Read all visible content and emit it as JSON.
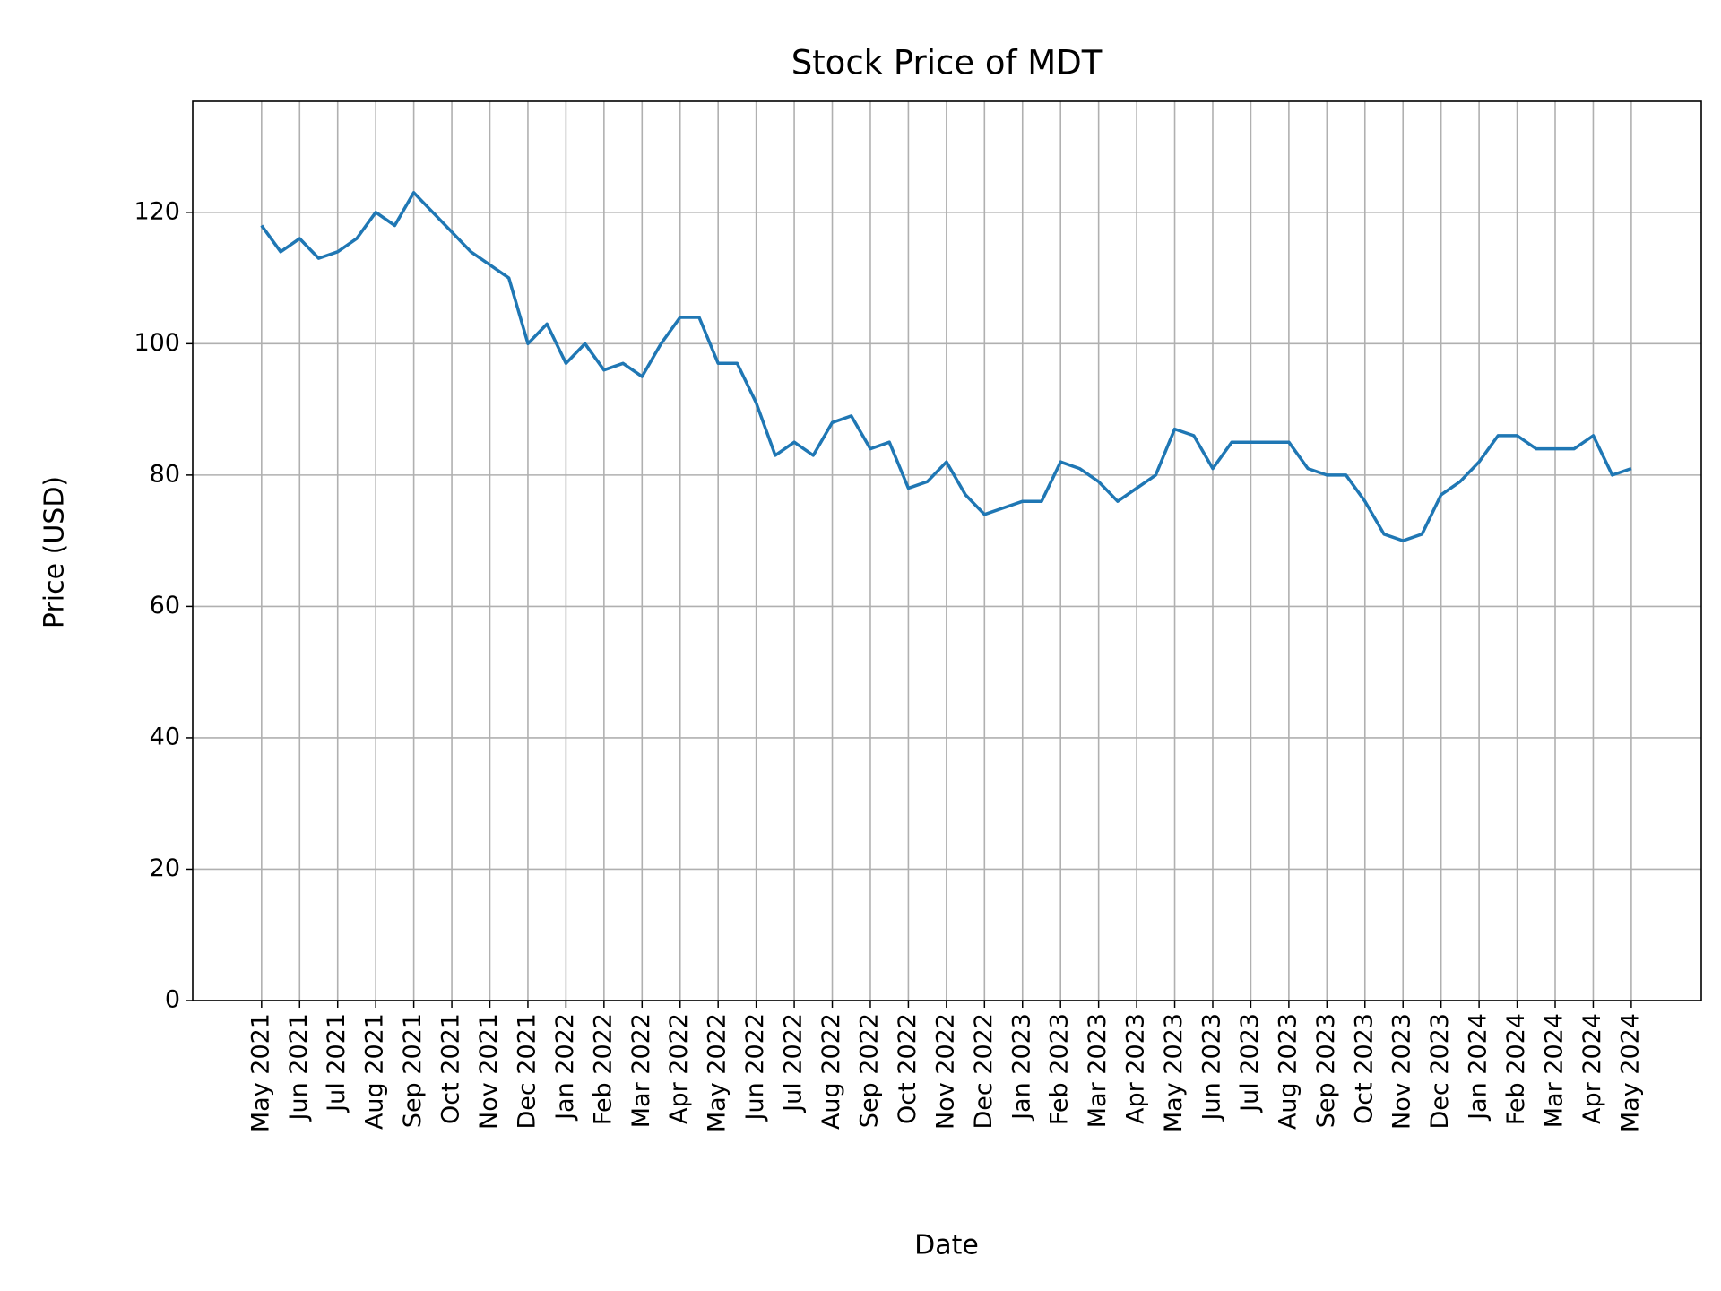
{
  "chart_data": {
    "type": "line",
    "title": "Stock Price of MDT",
    "xlabel": "Date",
    "ylabel": "Price (USD)",
    "x": [
      0,
      0.5,
      1,
      1.5,
      2,
      2.5,
      3,
      3.5,
      4,
      4.5,
      5,
      5.5,
      6,
      6.5,
      7,
      7.5,
      8,
      8.5,
      9,
      9.5,
      10,
      10.5,
      11,
      11.5,
      12,
      12.5,
      13,
      13.5,
      14,
      14.5,
      15,
      15.5,
      16,
      16.5,
      17,
      17.5,
      18,
      18.5,
      19,
      19.5,
      20,
      20.5,
      21,
      21.5,
      22,
      22.5,
      23,
      23.5,
      24,
      24.5,
      25,
      25.5,
      26,
      26.5,
      27,
      27.5,
      28,
      28.5,
      29,
      29.5,
      30,
      30.5,
      31,
      31.5,
      32,
      32.5,
      33,
      33.5,
      34,
      34.5,
      35,
      35.5,
      36
    ],
    "series": [
      {
        "name": "MDT",
        "color": "#1f77b4",
        "values": [
          118,
          114,
          116,
          113,
          114,
          116,
          120,
          118,
          123,
          120,
          117,
          114,
          112,
          110,
          100,
          103,
          97,
          100,
          96,
          97,
          95,
          100,
          104,
          104,
          97,
          97,
          91,
          83,
          85,
          83,
          88,
          89,
          84,
          85,
          78,
          79,
          82,
          77,
          74,
          75,
          76,
          76,
          82,
          81,
          79,
          76,
          78,
          80,
          87,
          86,
          81,
          85,
          85,
          85,
          85,
          81,
          80,
          80,
          76,
          71,
          70,
          71,
          77,
          79,
          82,
          86,
          86,
          84,
          84,
          84,
          86,
          80,
          81
        ]
      }
    ],
    "xlim": [
      -1.81,
      37.84
    ],
    "xticks": [
      {
        "value": 0,
        "label": "May 2021"
      },
      {
        "value": 1,
        "label": "Jun 2021"
      },
      {
        "value": 2,
        "label": "Jul 2021"
      },
      {
        "value": 3,
        "label": "Aug 2021"
      },
      {
        "value": 4,
        "label": "Sep 2021"
      },
      {
        "value": 5,
        "label": "Oct 2021"
      },
      {
        "value": 6,
        "label": "Nov 2021"
      },
      {
        "value": 7,
        "label": "Dec 2021"
      },
      {
        "value": 8,
        "label": "Jan 2022"
      },
      {
        "value": 9,
        "label": "Feb 2022"
      },
      {
        "value": 10,
        "label": "Mar 2022"
      },
      {
        "value": 11,
        "label": "Apr 2022"
      },
      {
        "value": 12,
        "label": "May 2022"
      },
      {
        "value": 13,
        "label": "Jun 2022"
      },
      {
        "value": 14,
        "label": "Jul 2022"
      },
      {
        "value": 15,
        "label": "Aug 2022"
      },
      {
        "value": 16,
        "label": "Sep 2022"
      },
      {
        "value": 17,
        "label": "Oct 2022"
      },
      {
        "value": 18,
        "label": "Nov 2022"
      },
      {
        "value": 19,
        "label": "Dec 2022"
      },
      {
        "value": 20,
        "label": "Jan 2023"
      },
      {
        "value": 21,
        "label": "Feb 2023"
      },
      {
        "value": 22,
        "label": "Mar 2023"
      },
      {
        "value": 23,
        "label": "Apr 2023"
      },
      {
        "value": 24,
        "label": "May 2023"
      },
      {
        "value": 25,
        "label": "Jun 2023"
      },
      {
        "value": 26,
        "label": "Jul 2023"
      },
      {
        "value": 27,
        "label": "Aug 2023"
      },
      {
        "value": 28,
        "label": "Sep 2023"
      },
      {
        "value": 29,
        "label": "Oct 2023"
      },
      {
        "value": 30,
        "label": "Nov 2023"
      },
      {
        "value": 31,
        "label": "Dec 2023"
      },
      {
        "value": 32,
        "label": "Jan 2024"
      },
      {
        "value": 33,
        "label": "Feb 2024"
      },
      {
        "value": 34,
        "label": "Mar 2024"
      },
      {
        "value": 35,
        "label": "Apr 2024"
      },
      {
        "value": 36,
        "label": "May 2024"
      }
    ],
    "ylim": [
      0,
      136.9
    ],
    "yticks": [
      0,
      20,
      40,
      60,
      80,
      100,
      120
    ],
    "grid": true
  }
}
